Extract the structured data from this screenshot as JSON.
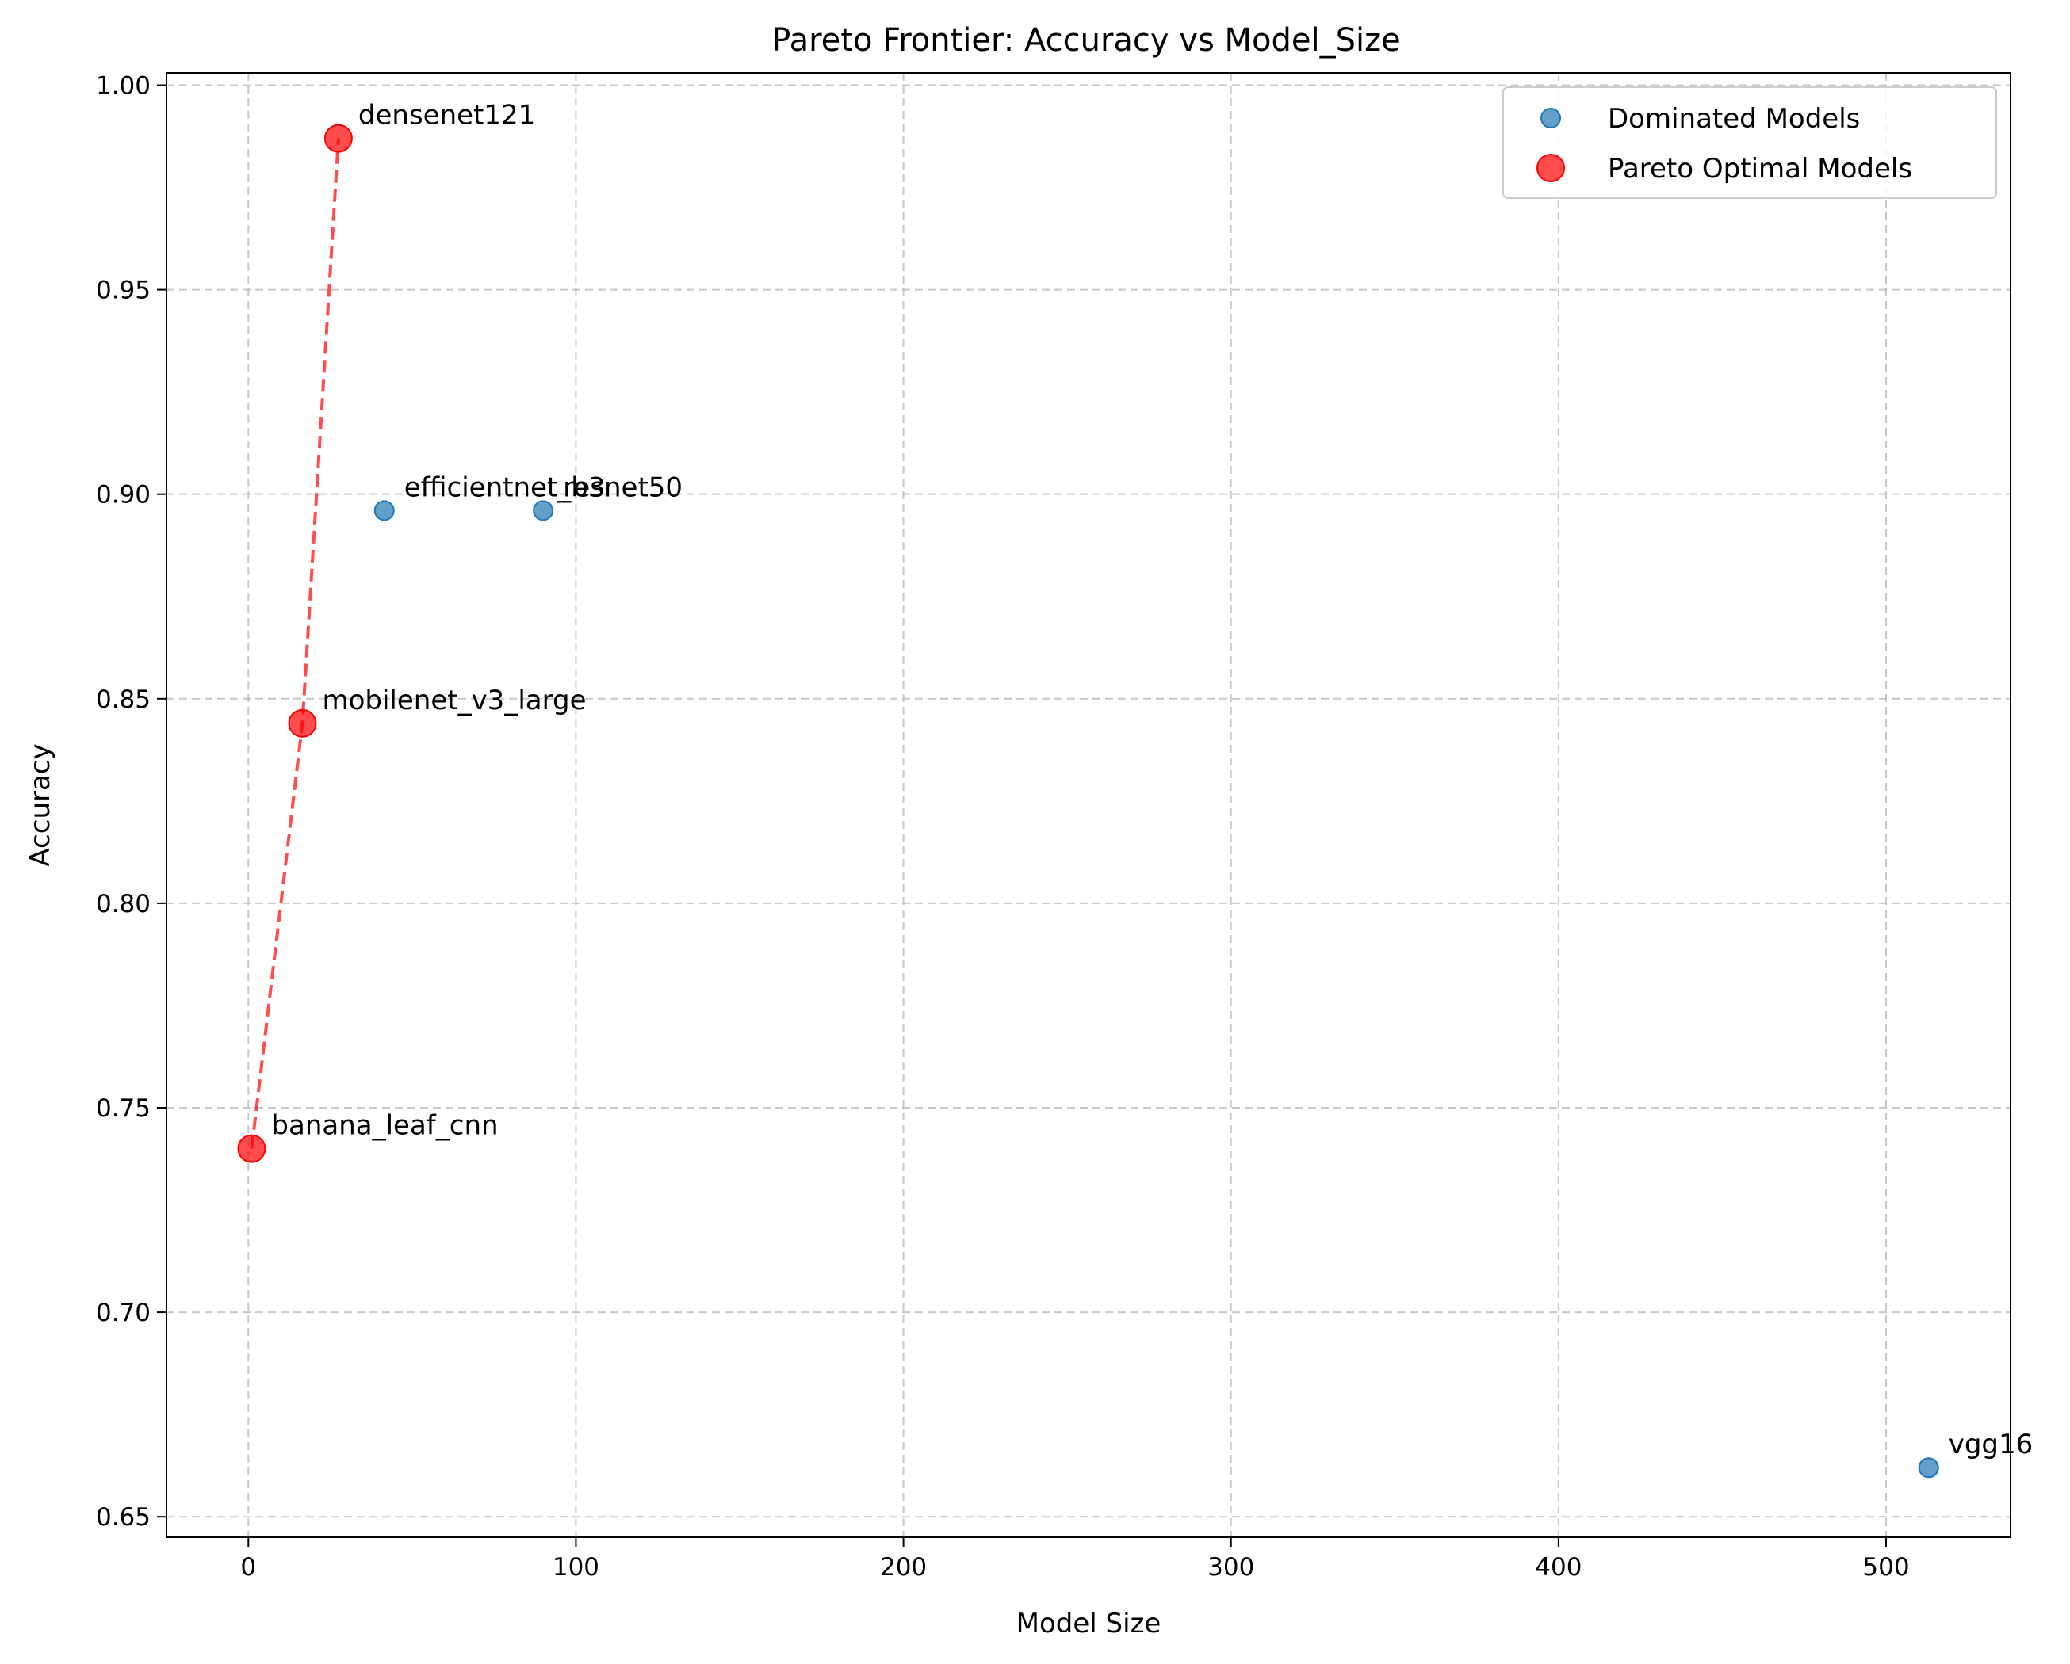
{
  "chart_data": {
    "type": "scatter",
    "title": "Pareto Frontier: Accuracy vs Model_Size",
    "xlabel": "Model Size",
    "ylabel": "Accuracy",
    "xlim": [
      -25,
      538
    ],
    "ylim": [
      0.645,
      1.003
    ],
    "xticks": [
      0,
      100,
      200,
      300,
      400,
      500
    ],
    "yticks": [
      0.65,
      0.7,
      0.75,
      0.8,
      0.85,
      0.9,
      0.95,
      1.0
    ],
    "xtick_labels": [
      "0",
      "100",
      "200",
      "300",
      "400",
      "500"
    ],
    "ytick_labels": [
      "0.65",
      "0.70",
      "0.75",
      "0.80",
      "0.85",
      "0.90",
      "0.95",
      "1.00"
    ],
    "grid": true,
    "legend_position": "top-right",
    "series": [
      {
        "name": "Dominated Models",
        "color": "#1f77b4",
        "points": [
          {
            "label": "efficientnet_b3",
            "x": 41.5,
            "y": 0.896
          },
          {
            "label": "resnet50",
            "x": 90,
            "y": 0.896
          },
          {
            "label": "vgg16",
            "x": 513,
            "y": 0.662
          }
        ]
      },
      {
        "name": "Pareto Optimal Models",
        "color": "#ff0000",
        "points": [
          {
            "label": "banana_leaf_cnn",
            "x": 1,
            "y": 0.74
          },
          {
            "label": "mobilenet_v3_large",
            "x": 16.5,
            "y": 0.844
          },
          {
            "label": "densenet121",
            "x": 27.5,
            "y": 0.987
          }
        ]
      }
    ],
    "frontier_line": {
      "color": "#ff0000",
      "style": "dashed"
    }
  }
}
